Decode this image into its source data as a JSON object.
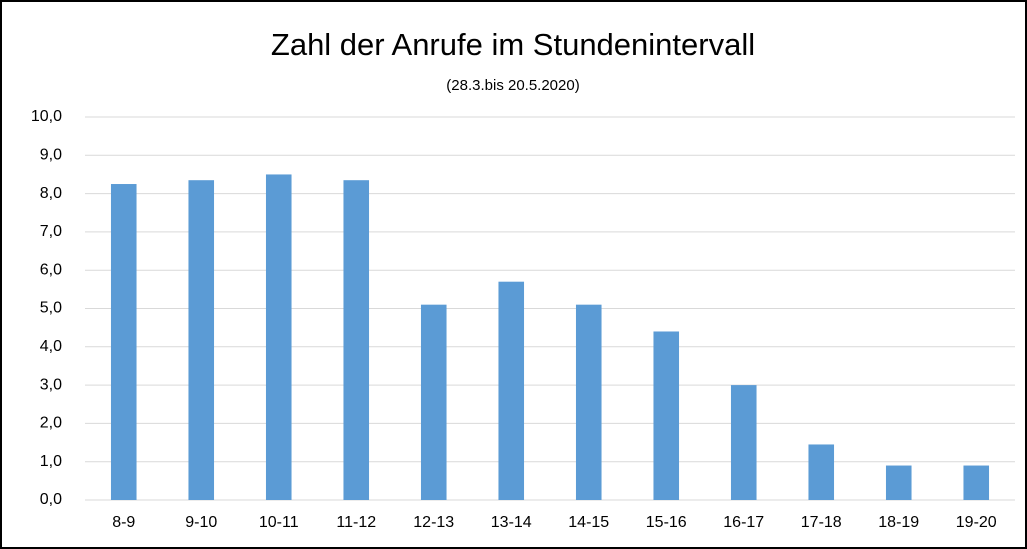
{
  "chart_data": {
    "type": "bar",
    "title": "Zahl der Anrufe im Stundenintervall",
    "subtitle": "(28.3.bis 20.5.2020)",
    "categories": [
      "8-9",
      "9-10",
      "10-11",
      "11-12",
      "12-13",
      "13-14",
      "14-15",
      "15-16",
      "16-17",
      "17-18",
      "18-19",
      "19-20"
    ],
    "values": [
      8.25,
      8.35,
      8.5,
      8.35,
      5.1,
      5.7,
      5.1,
      4.4,
      3.0,
      1.45,
      0.9,
      0.9
    ],
    "color": "#5b9bd5",
    "ylim": [
      0,
      10
    ],
    "yticks": [
      {
        "value": 0,
        "label": "0,0"
      },
      {
        "value": 1,
        "label": "1,0"
      },
      {
        "value": 2,
        "label": "2,0"
      },
      {
        "value": 3,
        "label": "3,0"
      },
      {
        "value": 4,
        "label": "4,0"
      },
      {
        "value": 5,
        "label": "5,0"
      },
      {
        "value": 6,
        "label": "6,0"
      },
      {
        "value": 7,
        "label": "7,0"
      },
      {
        "value": 8,
        "label": "8,0"
      },
      {
        "value": 9,
        "label": "9,0"
      },
      {
        "value": 10,
        "label": "10,0"
      }
    ],
    "grid": true
  }
}
